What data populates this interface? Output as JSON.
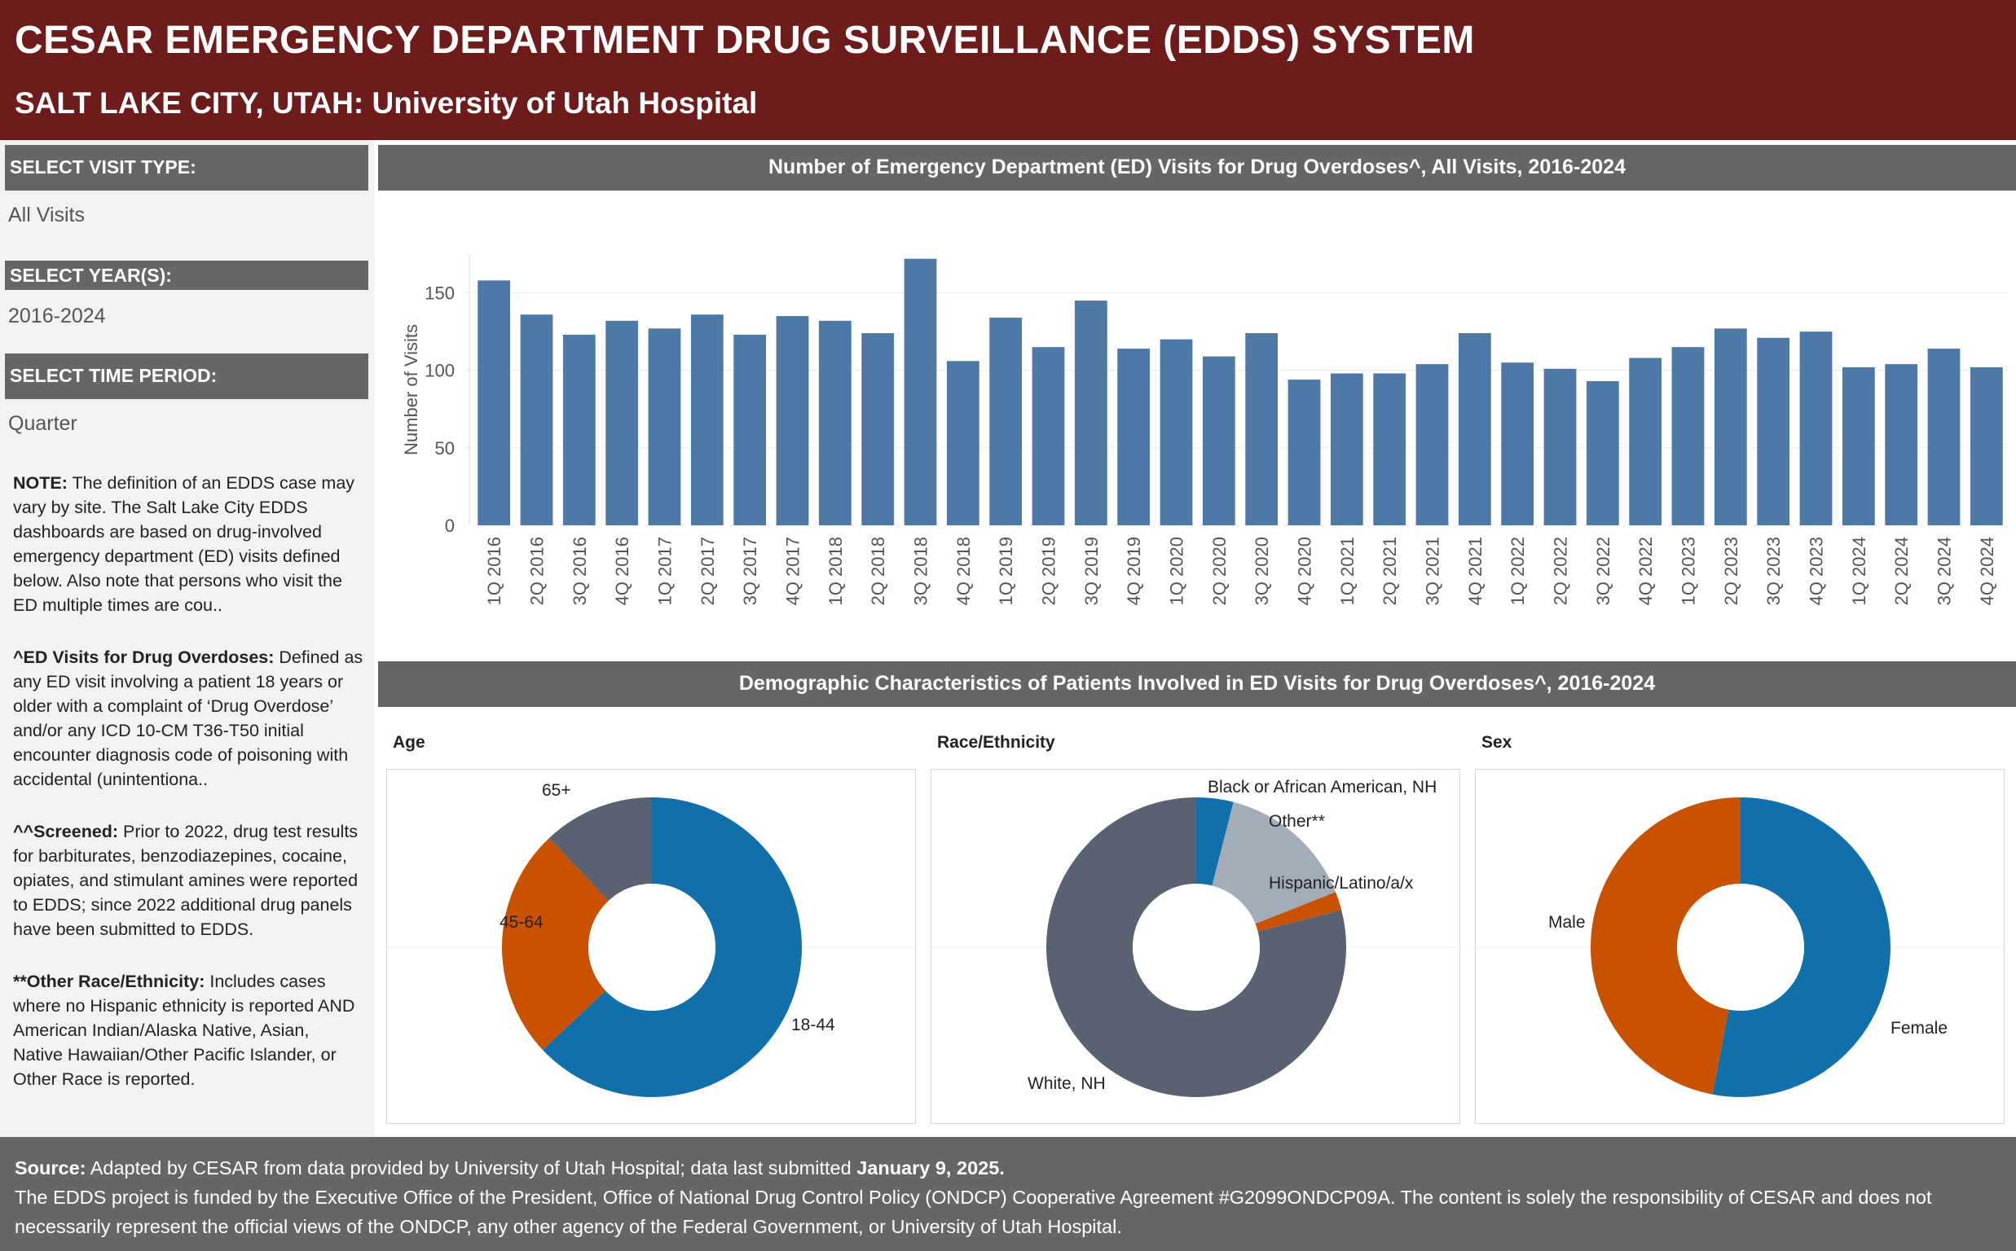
{
  "header": {
    "title": "CESAR EMERGENCY DEPARTMENT DRUG SURVEILLANCE (EDDS) SYSTEM",
    "subtitle": "SALT LAKE CITY, UTAH:  University of Utah Hospital"
  },
  "sidebar": {
    "visit_type_label": "SELECT VISIT TYPE:",
    "visit_type_value": "All Visits",
    "years_label": "SELECT YEAR(S):",
    "years_value": "2016-2024",
    "period_label": "SELECT TIME PERIOD:",
    "period_value": "Quarter",
    "note1_title": "NOTE:",
    "note1_text": " The definition of an EDDS case may vary by site. The Salt Lake City EDDS dashboards are based on drug-involved emergency department (ED) visits defined below. Also note that persons who visit the ED multiple times are cou..",
    "note2_title": "^ED Visits for Drug Overdoses:",
    "note2_text": " Defined as any ED visit involving a patient 18 years or older with a complaint of ‘Drug Overdose’ and/or any ICD 10-CM T36-T50 initial encounter diagnosis code of poisoning with accidental (unintentiona..",
    "note3_title": "^^Screened:",
    "note3_text": " Prior to 2022, drug test results for barbiturates, benzodiazepines, cocaine, opiates, and stimulant amines were reported to EDDS; since 2022 additional drug panels have been submitted to EDDS.",
    "note4_title": "**Other Race/Ethnicity:",
    "note4_text": " Includes cases where no Hispanic ethnicity is reported AND American Indian/Alaska Native, Asian, Native Hawaiian/Other Pacific Islander, or Other Race is reported."
  },
  "demographics_title": "Demographic Characteristics of Patients Involved in ED Visits for Drug Overdoses^, 2016-2024",
  "footer": {
    "source_label": "Source:",
    "source_text": " Adapted by CESAR from data provided by University of Utah Hospital; data last submitted ",
    "source_date": "January 9, 2025.",
    "funding_text": "The EDDS project is funded by the Executive Office of the President, Office of National Drug Control Policy (ONDCP) Cooperative Agreement #G2099ONDCP09A. The content is solely the responsibility of CESAR and does not necessarily represent the official views of the ONDCP, any other agency of the Federal Government, or University of Utah Hospital."
  },
  "colors": {
    "bar": "#4e79a7",
    "blue": "#1170aa",
    "orange": "#c85200",
    "slate": "#5a6170",
    "light_gray": "#a3acb9"
  },
  "chart_data": [
    {
      "type": "bar",
      "title": "Number of Emergency Department (ED) Visits for Drug Overdoses^, All Visits, 2016-2024",
      "ylabel": "Number of Visits",
      "ylim": [
        0,
        175
      ],
      "yticks": [
        0,
        50,
        100,
        150
      ],
      "grid": true,
      "categories": [
        "1Q 2016",
        "2Q 2016",
        "3Q 2016",
        "4Q 2016",
        "1Q 2017",
        "2Q 2017",
        "3Q 2017",
        "4Q 2017",
        "1Q 2018",
        "2Q 2018",
        "3Q 2018",
        "4Q 2018",
        "1Q 2019",
        "2Q 2019",
        "3Q 2019",
        "4Q 2019",
        "1Q 2020",
        "2Q 2020",
        "3Q 2020",
        "4Q 2020",
        "1Q 2021",
        "2Q 2021",
        "3Q 2021",
        "4Q 2021",
        "1Q 2022",
        "2Q 2022",
        "3Q 2022",
        "4Q 2022",
        "1Q 2023",
        "2Q 2023",
        "3Q 2023",
        "4Q 2023",
        "1Q 2024",
        "2Q 2024",
        "3Q 2024",
        "4Q 2024"
      ],
      "values": [
        158,
        136,
        123,
        132,
        127,
        136,
        123,
        135,
        132,
        124,
        172,
        106,
        134,
        115,
        145,
        114,
        120,
        109,
        124,
        94,
        98,
        98,
        104,
        124,
        105,
        101,
        93,
        108,
        115,
        127,
        121,
        125,
        102,
        104,
        114,
        102
      ]
    },
    {
      "type": "pie",
      "title": "Age",
      "labels": [
        "18-44",
        "45-64",
        "65+"
      ],
      "values": [
        63,
        25,
        12
      ],
      "colors": [
        "#1170aa",
        "#c85200",
        "#5a6170"
      ]
    },
    {
      "type": "pie",
      "title": "Race/Ethnicity",
      "labels": [
        "Black or African American, NH",
        "Other**",
        "Hispanic/Latino/a/x",
        "White, NH"
      ],
      "values": [
        4,
        15,
        2,
        79
      ],
      "colors": [
        "#1170aa",
        "#a3acb9",
        "#c85200",
        "#5a6170"
      ]
    },
    {
      "type": "pie",
      "title": "Sex",
      "labels": [
        "Female",
        "Male"
      ],
      "values": [
        53,
        47
      ],
      "colors": [
        "#1170aa",
        "#c85200"
      ]
    }
  ]
}
